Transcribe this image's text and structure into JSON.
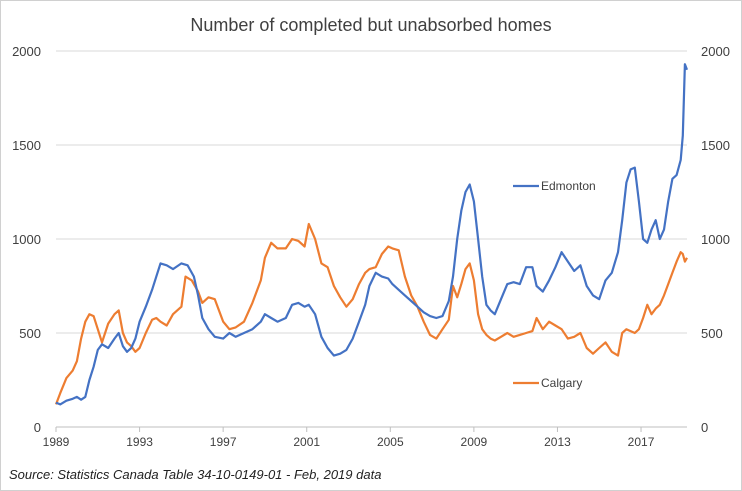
{
  "chart_data": {
    "type": "line",
    "title": "Number of completed but unabsorbed homes",
    "source": "Source: Statistics Canada Table 34-10-0149-01 - Feb, 2019 data",
    "x_range": [
      1989,
      2019.2
    ],
    "ylim": [
      0,
      2000
    ],
    "y_ticks": [
      "0",
      "500",
      "1000",
      "1500",
      "2000"
    ],
    "y_tick_values": [
      0,
      500,
      1000,
      1500,
      2000
    ],
    "x_ticks": [
      "1989",
      "1993",
      "1997",
      "2001",
      "2005",
      "2009",
      "2013",
      "2017"
    ],
    "x_tick_values": [
      1989,
      1993,
      1997,
      2001,
      2005,
      2009,
      2013,
      2017
    ],
    "gridlines": true,
    "legend": "inline labels",
    "series": [
      {
        "name": "Edmonton",
        "color": "#4472C4",
        "points": [
          [
            1989.0,
            130
          ],
          [
            1989.2,
            120
          ],
          [
            1989.5,
            140
          ],
          [
            1989.8,
            150
          ],
          [
            1990.0,
            160
          ],
          [
            1990.2,
            145
          ],
          [
            1990.4,
            160
          ],
          [
            1990.6,
            250
          ],
          [
            1990.8,
            320
          ],
          [
            1991.0,
            410
          ],
          [
            1991.2,
            440
          ],
          [
            1991.5,
            420
          ],
          [
            1991.8,
            470
          ],
          [
            1992.0,
            500
          ],
          [
            1992.2,
            430
          ],
          [
            1992.4,
            400
          ],
          [
            1992.6,
            420
          ],
          [
            1992.8,
            470
          ],
          [
            1993.0,
            560
          ],
          [
            1993.3,
            640
          ],
          [
            1993.6,
            730
          ],
          [
            1993.8,
            800
          ],
          [
            1994.0,
            870
          ],
          [
            1994.3,
            860
          ],
          [
            1994.6,
            840
          ],
          [
            1995.0,
            870
          ],
          [
            1995.3,
            860
          ],
          [
            1995.6,
            800
          ],
          [
            1995.8,
            700
          ],
          [
            1996.0,
            580
          ],
          [
            1996.3,
            520
          ],
          [
            1996.6,
            480
          ],
          [
            1997.0,
            470
          ],
          [
            1997.3,
            500
          ],
          [
            1997.6,
            480
          ],
          [
            1998.0,
            500
          ],
          [
            1998.4,
            520
          ],
          [
            1998.8,
            560
          ],
          [
            1999.0,
            600
          ],
          [
            1999.3,
            580
          ],
          [
            1999.6,
            560
          ],
          [
            2000.0,
            580
          ],
          [
            2000.3,
            650
          ],
          [
            2000.6,
            660
          ],
          [
            2000.9,
            640
          ],
          [
            2001.1,
            650
          ],
          [
            2001.4,
            600
          ],
          [
            2001.7,
            480
          ],
          [
            2002.0,
            420
          ],
          [
            2002.3,
            380
          ],
          [
            2002.6,
            390
          ],
          [
            2002.9,
            410
          ],
          [
            2003.2,
            470
          ],
          [
            2003.5,
            560
          ],
          [
            2003.8,
            650
          ],
          [
            2004.0,
            750
          ],
          [
            2004.3,
            820
          ],
          [
            2004.6,
            800
          ],
          [
            2004.9,
            790
          ],
          [
            2005.1,
            760
          ],
          [
            2005.4,
            730
          ],
          [
            2005.7,
            700
          ],
          [
            2006.0,
            670
          ],
          [
            2006.3,
            640
          ],
          [
            2006.6,
            610
          ],
          [
            2006.9,
            590
          ],
          [
            2007.2,
            580
          ],
          [
            2007.5,
            590
          ],
          [
            2007.8,
            670
          ],
          [
            2008.0,
            800
          ],
          [
            2008.2,
            1000
          ],
          [
            2008.4,
            1150
          ],
          [
            2008.6,
            1250
          ],
          [
            2008.8,
            1290
          ],
          [
            2009.0,
            1200
          ],
          [
            2009.2,
            1000
          ],
          [
            2009.4,
            800
          ],
          [
            2009.6,
            650
          ],
          [
            2009.8,
            620
          ],
          [
            2010.0,
            600
          ],
          [
            2010.3,
            680
          ],
          [
            2010.6,
            760
          ],
          [
            2010.9,
            770
          ],
          [
            2011.2,
            760
          ],
          [
            2011.5,
            850
          ],
          [
            2011.8,
            850
          ],
          [
            2012.0,
            750
          ],
          [
            2012.3,
            720
          ],
          [
            2012.6,
            780
          ],
          [
            2012.9,
            850
          ],
          [
            2013.2,
            930
          ],
          [
            2013.5,
            880
          ],
          [
            2013.8,
            830
          ],
          [
            2014.1,
            860
          ],
          [
            2014.4,
            750
          ],
          [
            2014.7,
            700
          ],
          [
            2015.0,
            680
          ],
          [
            2015.3,
            780
          ],
          [
            2015.6,
            820
          ],
          [
            2015.9,
            930
          ],
          [
            2016.1,
            1100
          ],
          [
            2016.3,
            1300
          ],
          [
            2016.5,
            1370
          ],
          [
            2016.7,
            1380
          ],
          [
            2016.9,
            1200
          ],
          [
            2017.1,
            1000
          ],
          [
            2017.3,
            980
          ],
          [
            2017.5,
            1050
          ],
          [
            2017.7,
            1100
          ],
          [
            2017.9,
            1000
          ],
          [
            2018.1,
            1050
          ],
          [
            2018.3,
            1200
          ],
          [
            2018.5,
            1320
          ],
          [
            2018.7,
            1340
          ],
          [
            2018.9,
            1420
          ],
          [
            2019.0,
            1550
          ],
          [
            2019.1,
            1930
          ],
          [
            2019.2,
            1900
          ]
        ]
      },
      {
        "name": "Calgary",
        "color": "#ED7D31",
        "points": [
          [
            1989.0,
            120
          ],
          [
            1989.2,
            180
          ],
          [
            1989.5,
            260
          ],
          [
            1989.8,
            300
          ],
          [
            1990.0,
            350
          ],
          [
            1990.2,
            470
          ],
          [
            1990.4,
            560
          ],
          [
            1990.6,
            600
          ],
          [
            1990.8,
            590
          ],
          [
            1991.0,
            520
          ],
          [
            1991.2,
            450
          ],
          [
            1991.5,
            550
          ],
          [
            1991.8,
            600
          ],
          [
            1992.0,
            620
          ],
          [
            1992.2,
            500
          ],
          [
            1992.4,
            450
          ],
          [
            1992.6,
            430
          ],
          [
            1992.8,
            400
          ],
          [
            1993.0,
            420
          ],
          [
            1993.3,
            500
          ],
          [
            1993.6,
            570
          ],
          [
            1993.8,
            580
          ],
          [
            1994.0,
            560
          ],
          [
            1994.3,
            540
          ],
          [
            1994.6,
            600
          ],
          [
            1995.0,
            640
          ],
          [
            1995.2,
            800
          ],
          [
            1995.5,
            780
          ],
          [
            1995.8,
            720
          ],
          [
            1996.0,
            660
          ],
          [
            1996.3,
            690
          ],
          [
            1996.6,
            680
          ],
          [
            1997.0,
            560
          ],
          [
            1997.3,
            520
          ],
          [
            1997.6,
            530
          ],
          [
            1998.0,
            560
          ],
          [
            1998.4,
            660
          ],
          [
            1998.8,
            780
          ],
          [
            1999.0,
            900
          ],
          [
            1999.3,
            980
          ],
          [
            1999.6,
            950
          ],
          [
            2000.0,
            950
          ],
          [
            2000.3,
            1000
          ],
          [
            2000.6,
            990
          ],
          [
            2000.9,
            960
          ],
          [
            2001.1,
            1080
          ],
          [
            2001.4,
            1000
          ],
          [
            2001.7,
            870
          ],
          [
            2002.0,
            850
          ],
          [
            2002.3,
            750
          ],
          [
            2002.6,
            690
          ],
          [
            2002.9,
            640
          ],
          [
            2003.2,
            680
          ],
          [
            2003.5,
            760
          ],
          [
            2003.8,
            820
          ],
          [
            2004.0,
            840
          ],
          [
            2004.3,
            850
          ],
          [
            2004.6,
            920
          ],
          [
            2004.9,
            960
          ],
          [
            2005.1,
            950
          ],
          [
            2005.4,
            940
          ],
          [
            2005.7,
            800
          ],
          [
            2006.0,
            700
          ],
          [
            2006.3,
            640
          ],
          [
            2006.6,
            560
          ],
          [
            2006.9,
            490
          ],
          [
            2007.2,
            470
          ],
          [
            2007.5,
            520
          ],
          [
            2007.8,
            570
          ],
          [
            2008.0,
            750
          ],
          [
            2008.2,
            690
          ],
          [
            2008.4,
            760
          ],
          [
            2008.6,
            840
          ],
          [
            2008.8,
            870
          ],
          [
            2009.0,
            780
          ],
          [
            2009.2,
            600
          ],
          [
            2009.4,
            520
          ],
          [
            2009.6,
            490
          ],
          [
            2009.8,
            470
          ],
          [
            2010.0,
            460
          ],
          [
            2010.3,
            480
          ],
          [
            2010.6,
            500
          ],
          [
            2010.9,
            480
          ],
          [
            2011.2,
            490
          ],
          [
            2011.5,
            500
          ],
          [
            2011.8,
            510
          ],
          [
            2012.0,
            580
          ],
          [
            2012.3,
            520
          ],
          [
            2012.6,
            560
          ],
          [
            2012.9,
            540
          ],
          [
            2013.2,
            520
          ],
          [
            2013.5,
            470
          ],
          [
            2013.8,
            480
          ],
          [
            2014.1,
            500
          ],
          [
            2014.4,
            420
          ],
          [
            2014.7,
            390
          ],
          [
            2015.0,
            420
          ],
          [
            2015.3,
            450
          ],
          [
            2015.6,
            400
          ],
          [
            2015.9,
            380
          ],
          [
            2016.1,
            500
          ],
          [
            2016.3,
            520
          ],
          [
            2016.5,
            510
          ],
          [
            2016.7,
            500
          ],
          [
            2016.9,
            520
          ],
          [
            2017.1,
            580
          ],
          [
            2017.3,
            650
          ],
          [
            2017.5,
            600
          ],
          [
            2017.7,
            630
          ],
          [
            2017.9,
            650
          ],
          [
            2018.1,
            700
          ],
          [
            2018.3,
            760
          ],
          [
            2018.5,
            820
          ],
          [
            2018.7,
            880
          ],
          [
            2018.9,
            930
          ],
          [
            2019.0,
            920
          ],
          [
            2019.1,
            880
          ],
          [
            2019.2,
            900
          ]
        ]
      }
    ]
  }
}
